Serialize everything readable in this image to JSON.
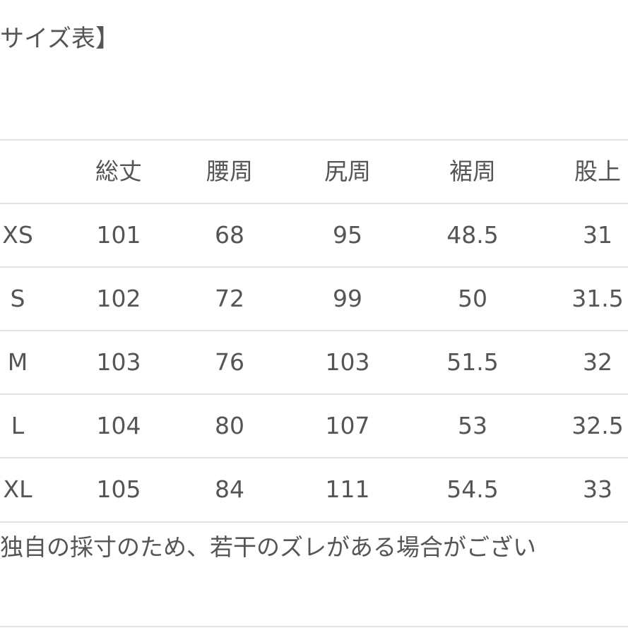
{
  "title": "サイズ表】",
  "table": {
    "headers": [
      "",
      "総丈",
      "腰周",
      "尻周",
      "裾周",
      "股上"
    ],
    "rows": [
      [
        "XS",
        "101",
        "68",
        "95",
        "48.5",
        "31"
      ],
      [
        "S",
        "102",
        "72",
        "99",
        "50",
        "31.5"
      ],
      [
        "M",
        "103",
        "76",
        "103",
        "51.5",
        "32"
      ],
      [
        "L",
        "104",
        "80",
        "107",
        "53",
        "32.5"
      ],
      [
        "XL",
        "105",
        "84",
        "111",
        "54.5",
        "33"
      ]
    ]
  },
  "note": "独自の採寸のため、若干のズレがある場合がござい"
}
